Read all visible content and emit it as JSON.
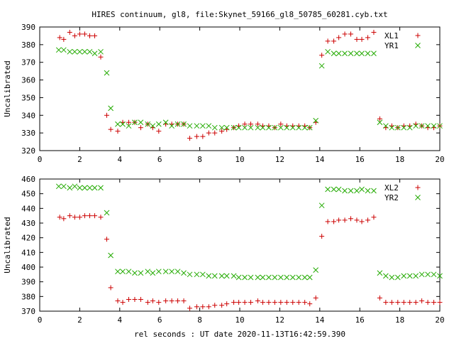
{
  "title": "HIRES continuum, gl8, file:Skynet_59166_gl8_50785_60281.cyb.txt",
  "xlabel": "rel seconds : UT date 2020-11-13T16:42:59.390",
  "colors": {
    "xl": "#cc0000",
    "yr": "#22aa00",
    "frame": "#000000"
  },
  "chart_data": [
    {
      "type": "scatter",
      "xlim": [
        0,
        20
      ],
      "ylim": [
        320,
        390
      ],
      "xticks": [
        0,
        2,
        4,
        6,
        8,
        10,
        12,
        14,
        16,
        18,
        20
      ],
      "yticks": [
        320,
        330,
        340,
        350,
        360,
        370,
        380,
        390
      ],
      "ylabel": "Uncalibrated",
      "legend_position": "top-right",
      "grid": false,
      "series": [
        {
          "name": "XL1",
          "marker": "plus",
          "color": "#cc0000",
          "x": [
            1.0,
            1.2,
            1.5,
            1.75,
            2.0,
            2.25,
            2.5,
            2.75,
            3.05,
            3.35,
            3.55,
            3.9,
            4.15,
            4.45,
            4.75,
            5.05,
            5.4,
            5.65,
            5.95,
            6.3,
            6.6,
            6.9,
            7.2,
            7.5,
            7.85,
            8.15,
            8.45,
            8.75,
            9.1,
            9.35,
            9.7,
            9.95,
            10.25,
            10.55,
            10.9,
            11.15,
            11.45,
            11.75,
            12.05,
            12.35,
            12.65,
            12.95,
            13.25,
            13.5,
            13.8,
            14.1,
            14.4,
            14.7,
            14.95,
            15.25,
            15.55,
            15.85,
            16.1,
            16.4,
            16.7,
            17.0,
            17.3,
            17.6,
            17.9,
            18.2,
            18.5,
            18.8,
            19.1,
            19.4,
            19.7,
            20.0
          ],
          "y": [
            384,
            383,
            387,
            385,
            386,
            386,
            385,
            385,
            373,
            340,
            332,
            331,
            336,
            336,
            336,
            333,
            335,
            333,
            331,
            335,
            335,
            335,
            335,
            327,
            328,
            328,
            330,
            330,
            331,
            332,
            333,
            334,
            335,
            335,
            335,
            334,
            334,
            333,
            335,
            334,
            334,
            334,
            334,
            333,
            336,
            374,
            382,
            382,
            384,
            386,
            386,
            383,
            383,
            384,
            387,
            338,
            333,
            334,
            333,
            334,
            334,
            335,
            334,
            333,
            333,
            334
          ]
        },
        {
          "name": "YR1",
          "marker": "x",
          "color": "#22aa00",
          "x": [
            0.95,
            1.2,
            1.5,
            1.75,
            2.0,
            2.25,
            2.5,
            2.75,
            3.05,
            3.35,
            3.55,
            3.9,
            4.15,
            4.45,
            4.75,
            5.05,
            5.4,
            5.65,
            5.95,
            6.3,
            6.6,
            6.9,
            7.2,
            7.5,
            7.85,
            8.15,
            8.45,
            8.75,
            9.1,
            9.35,
            9.7,
            9.95,
            10.25,
            10.55,
            10.9,
            11.15,
            11.45,
            11.75,
            12.05,
            12.35,
            12.65,
            12.95,
            13.25,
            13.5,
            13.8,
            14.1,
            14.4,
            14.7,
            14.95,
            15.25,
            15.55,
            15.85,
            16.1,
            16.4,
            16.7,
            17.0,
            17.3,
            17.6,
            17.9,
            18.2,
            18.5,
            18.8,
            19.1,
            19.4,
            19.7,
            20.0
          ],
          "y": [
            377,
            377,
            376,
            376,
            376,
            376,
            376,
            375,
            376,
            364,
            344,
            335,
            335,
            334,
            336,
            336,
            335,
            334,
            335,
            336,
            334,
            335,
            335,
            334,
            334,
            334,
            334,
            333,
            333,
            333,
            333,
            333,
            333,
            333,
            333,
            333,
            333,
            333,
            333,
            333,
            333,
            333,
            333,
            333,
            337,
            368,
            376,
            375,
            375,
            375,
            375,
            375,
            375,
            375,
            375,
            336,
            334,
            333,
            333,
            333,
            333,
            334,
            334,
            334,
            334,
            334
          ]
        }
      ]
    },
    {
      "type": "scatter",
      "xlim": [
        0,
        20
      ],
      "ylim": [
        370,
        460
      ],
      "xticks": [
        0,
        2,
        4,
        6,
        8,
        10,
        12,
        14,
        16,
        18,
        20
      ],
      "yticks": [
        370,
        380,
        390,
        400,
        410,
        420,
        430,
        440,
        450,
        460
      ],
      "ylabel": "Uncalibrated",
      "legend_position": "top-right",
      "grid": false,
      "series": [
        {
          "name": "XL2",
          "marker": "plus",
          "color": "#cc0000",
          "x": [
            1.0,
            1.2,
            1.5,
            1.75,
            2.0,
            2.25,
            2.5,
            2.75,
            3.05,
            3.35,
            3.55,
            3.9,
            4.15,
            4.45,
            4.75,
            5.05,
            5.4,
            5.65,
            5.95,
            6.3,
            6.6,
            6.9,
            7.2,
            7.5,
            7.85,
            8.15,
            8.45,
            8.75,
            9.1,
            9.35,
            9.7,
            9.95,
            10.25,
            10.55,
            10.9,
            11.15,
            11.45,
            11.75,
            12.05,
            12.35,
            12.65,
            12.95,
            13.25,
            13.5,
            13.8,
            14.1,
            14.4,
            14.7,
            14.95,
            15.25,
            15.55,
            15.85,
            16.1,
            16.4,
            16.7,
            17.0,
            17.3,
            17.6,
            17.9,
            18.2,
            18.5,
            18.8,
            19.1,
            19.4,
            19.7,
            20.0
          ],
          "y": [
            434,
            433,
            435,
            434,
            434,
            435,
            435,
            435,
            434,
            419,
            386,
            377,
            376,
            378,
            378,
            378,
            376,
            377,
            376,
            377,
            377,
            377,
            377,
            372,
            373,
            373,
            373,
            374,
            374,
            375,
            376,
            376,
            376,
            376,
            377,
            376,
            376,
            376,
            376,
            376,
            376,
            376,
            376,
            375,
            379,
            421,
            431,
            431,
            432,
            432,
            433,
            432,
            431,
            432,
            434,
            379,
            376,
            376,
            376,
            376,
            376,
            376,
            377,
            376,
            376,
            376
          ]
        },
        {
          "name": "YR2",
          "marker": "x",
          "color": "#22aa00",
          "x": [
            0.95,
            1.2,
            1.5,
            1.75,
            2.0,
            2.25,
            2.5,
            2.75,
            3.05,
            3.35,
            3.55,
            3.9,
            4.15,
            4.45,
            4.75,
            5.05,
            5.4,
            5.65,
            5.95,
            6.3,
            6.6,
            6.9,
            7.2,
            7.5,
            7.85,
            8.15,
            8.45,
            8.75,
            9.1,
            9.35,
            9.7,
            9.95,
            10.25,
            10.55,
            10.9,
            11.15,
            11.45,
            11.75,
            12.05,
            12.35,
            12.65,
            12.95,
            13.25,
            13.5,
            13.8,
            14.1,
            14.4,
            14.7,
            14.95,
            15.25,
            15.55,
            15.85,
            16.1,
            16.4,
            16.7,
            17.0,
            17.3,
            17.6,
            17.9,
            18.2,
            18.5,
            18.8,
            19.1,
            19.4,
            19.7,
            20.0
          ],
          "y": [
            455,
            455,
            454,
            455,
            454,
            454,
            454,
            454,
            454,
            437,
            408,
            397,
            397,
            397,
            396,
            396,
            397,
            396,
            397,
            397,
            397,
            397,
            396,
            395,
            395,
            395,
            394,
            394,
            394,
            394,
            394,
            393,
            393,
            393,
            393,
            393,
            393,
            393,
            393,
            393,
            393,
            393,
            393,
            393,
            398,
            442,
            453,
            453,
            453,
            452,
            452,
            452,
            453,
            452,
            452,
            396,
            394,
            393,
            393,
            394,
            394,
            394,
            395,
            395,
            395,
            394
          ]
        }
      ]
    }
  ]
}
